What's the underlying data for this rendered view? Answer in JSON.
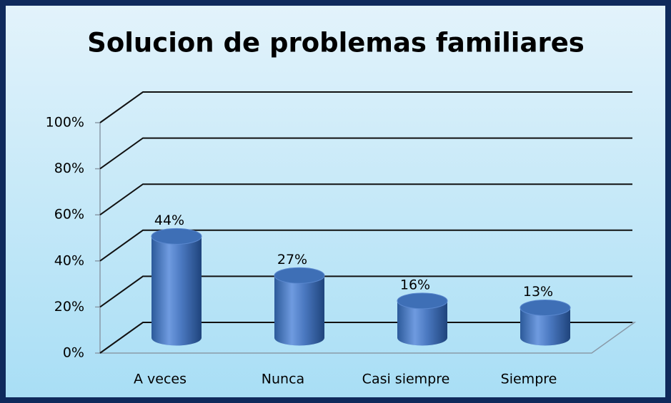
{
  "chart_data": {
    "type": "bar3d",
    "title": "Solucion de problemas familiares",
    "categories": [
      "A veces",
      "Nunca",
      "Casi siempre",
      "Siempre"
    ],
    "values": [
      44,
      27,
      16,
      13
    ],
    "value_labels": [
      "44%",
      "27%",
      "16%",
      "13%"
    ],
    "color": "#4f81bd",
    "ylim": [
      0,
      100
    ],
    "yticks": [
      {
        "value": 0,
        "label": "0%"
      },
      {
        "value": 20,
        "label": "20%"
      },
      {
        "value": 40,
        "label": "40%"
      },
      {
        "value": 60,
        "label": "60%"
      },
      {
        "value": 80,
        "label": "80%"
      },
      {
        "value": 100,
        "label": "100%"
      }
    ],
    "grid": true
  }
}
